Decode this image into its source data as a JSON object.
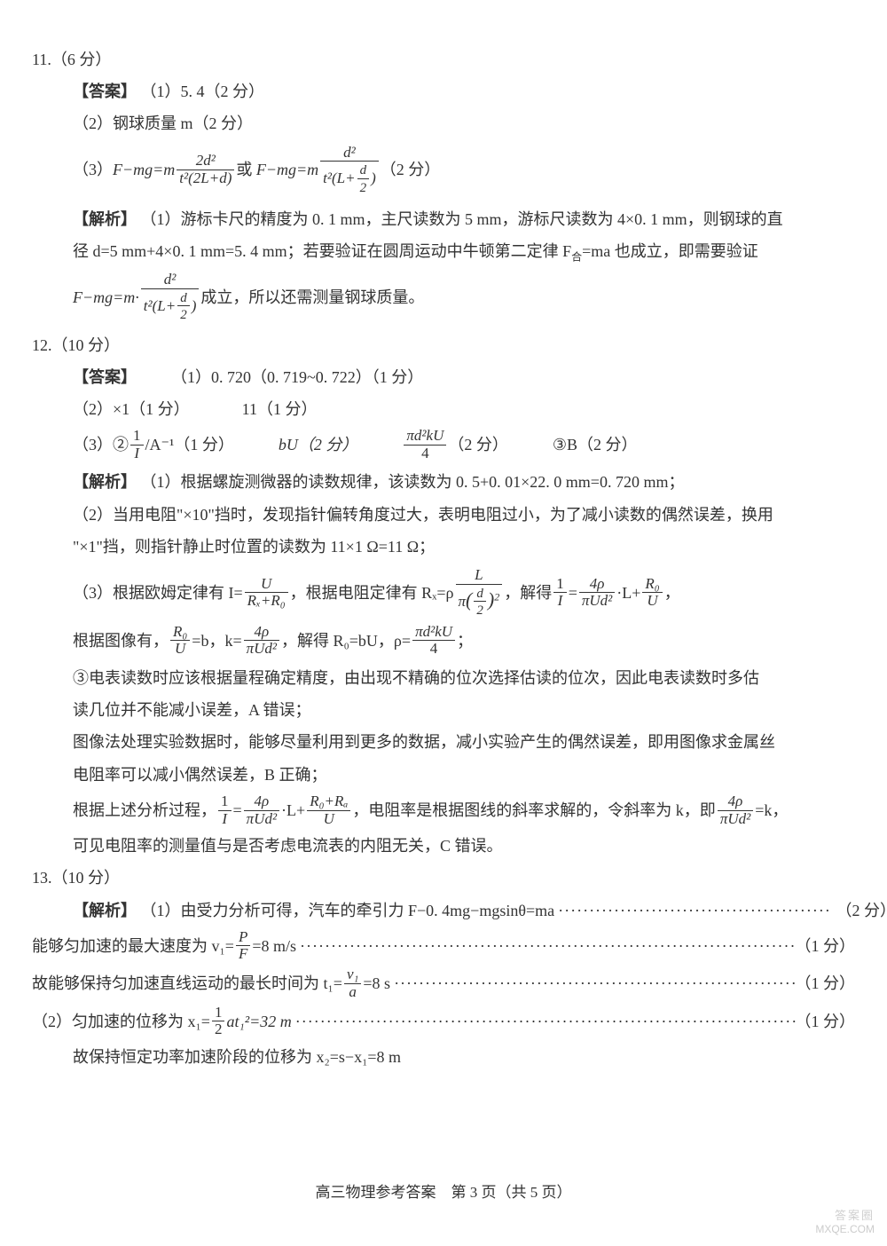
{
  "page": {
    "footer": "高三物理参考答案　第 3 页（共 5 页）",
    "watermark_top": "答案圈",
    "watermark_bottom": "MXQE.COM",
    "bg_color": "#ffffff",
    "text_color": "#333333",
    "base_fontsize": 18
  },
  "q11": {
    "header": "11.（6 分）",
    "ans_label": "【答案】",
    "ans_1": "（1）5. 4（2 分）",
    "ans_2": "（2）钢球质量 m（2 分）",
    "ans_3_prefix": "（3）",
    "eq1_lhs": "F−mg=m",
    "eq1_num": "2d²",
    "eq1_den": "t²(2L+d)",
    "eq_or": "或",
    "eq2_lhs": "F−mg=m",
    "eq2_num": "d²",
    "eq2_den_outer_left": "t²(L+",
    "eq2_den_inner_num": "d",
    "eq2_den_inner_den": "2",
    "eq2_den_outer_right": ")",
    "ans_3_pts": "（2 分）",
    "exp_label": "【解析】",
    "exp_line1": "（1）游标卡尺的精度为 0. 1 mm，主尺读数为 5 mm，游标尺读数为 4×0. 1 mm，则钢球的直",
    "exp_line2_a": "径 d=5 mm+4×0. 1 mm=5. 4 mm；若要验证在圆周运动中牛顿第二定律 F",
    "exp_line2_sub": "合",
    "exp_line2_b": "=ma 也成立，即需要验证",
    "exp_line3_lhs": "F−mg=m·",
    "exp_line3_suffix": "成立，所以还需测量钢球质量。"
  },
  "q12": {
    "header": "12.（10 分）",
    "ans_label": "【答案】",
    "ans_1": "（1）0. 720（0. 719~0. 722）（1 分）",
    "ans_2a": "（2）×1（1 分）",
    "ans_2b": "11（1 分）",
    "ans_3_prefix": "（3）②",
    "ans_3_frac_num": "1",
    "ans_3_frac_den": "I",
    "ans_3_unit": "/A⁻¹（1 分）",
    "ans_3_b": "bU（2 分）",
    "ans_3_c_num": "πd²kU",
    "ans_3_c_den": "4",
    "ans_3_c_pts": "（2 分）",
    "ans_3_d": "③B（2 分）",
    "exp_label": "【解析】",
    "exp1": "（1）根据螺旋测微器的读数规律，该读数为 0. 5+0. 01×22. 0 mm=0. 720 mm；",
    "exp2a": "（2）当用电阻\"×10\"挡时，发现指针偏转角度过大，表明电阻过小，为了减小读数的偶然误差，换用",
    "exp2b": "\"×1\"挡，则指针静止时位置的读数为 11×1 Ω=11 Ω；",
    "exp3_prefix": "（3）根据欧姆定律有 I=",
    "exp3_f1_num": "U",
    "exp3_f1_den": "Rₓ+R₀",
    "exp3_mid1": "，根据电阻定律有 Rₓ=ρ",
    "exp3_f2_num": "L",
    "exp3_f2_den_outer": "π",
    "exp3_f2_den_inner_num": "d",
    "exp3_f2_den_inner_den": "2",
    "exp3_mid2": "，解得",
    "exp3_f3_num": "1",
    "exp3_f3_den": "I",
    "exp3_eq": "=",
    "exp3_f4_num": "4ρ",
    "exp3_f4_den": "πUd²",
    "exp3_mid3": "·L+",
    "exp3_f5_num": "R₀",
    "exp3_f5_den": "U",
    "exp3_end": "，",
    "exp4_prefix": "根据图像有，",
    "exp4_f1_num": "R₀",
    "exp4_f1_den": "U",
    "exp4_mid1": "=b，k=",
    "exp4_f2_num": "4ρ",
    "exp4_f2_den": "πUd²",
    "exp4_mid2": "，解得 R₀=bU，ρ=",
    "exp4_f3_num": "πd²kU",
    "exp4_f3_den": "4",
    "exp4_end": "；",
    "exp5a": "③电表读数时应该根据量程确定精度，由出现不精确的位次选择估读的位次，因此电表读数时多估",
    "exp5b": "读几位并不能减小误差，A 错误；",
    "exp6a": "图像法处理实验数据时，能够尽量利用到更多的数据，减小实验产生的偶然误差，即用图像求金属丝",
    "exp6b": "电阻率可以减小偶然误差，B 正确；",
    "exp7_prefix": "根据上述分析过程，",
    "exp7_f1_num": "1",
    "exp7_f1_den": "I",
    "exp7_mid1": "=",
    "exp7_f2_num": "4ρ",
    "exp7_f2_den": "πUd²",
    "exp7_mid2": "·L+",
    "exp7_f3_num": "R₀+Rₐ",
    "exp7_f3_den": "U",
    "exp7_mid3": "，电阻率是根据图线的斜率求解的，令斜率为 k，即",
    "exp7_f4_num": "4ρ",
    "exp7_f4_den": "πUd²",
    "exp7_end": "=k，",
    "exp8": "可见电阻率的测量值与是否考虑电流表的内阻无关，C 错误。"
  },
  "q13": {
    "header": "13.（10 分）",
    "exp_label": "【解析】",
    "line1_txt": "（1）由受力分析可得，汽车的牵引力 F−0. 4mg−mgsinθ=ma",
    "line1_pts": "（2 分）",
    "line2_txt_a": "能够匀加速的最大速度为 v₁=",
    "line2_num": "P",
    "line2_den": "F",
    "line2_txt_b": "=8 m/s",
    "line2_pts": "（1 分）",
    "line3_txt_a": "故能够保持匀加速直线运动的最长时间为 t₁=",
    "line3_num": "v₁",
    "line3_den": "a",
    "line3_txt_b": "=8 s",
    "line3_pts": "（1 分）",
    "line4_txt_a": "（2）匀加速的位移为 x₁=",
    "line4_num": "1",
    "line4_den": "2",
    "line4_txt_b": "at₁²=32 m",
    "line4_pts": "（1 分）",
    "line5": "故保持恒定功率加速阶段的位移为 x₂=s−x₁=8 m"
  }
}
